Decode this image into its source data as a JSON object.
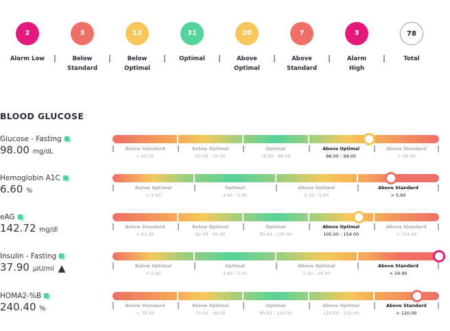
{
  "colors": {
    "alarm": "#e3197e",
    "standard": "#ee6f65",
    "optimal_adj": "#f5c75c",
    "optimal": "#54d39a",
    "copy_icon": "#4fd39a"
  },
  "summary": [
    {
      "count": "2",
      "label": "Alarm Low",
      "color": "#e3197e"
    },
    {
      "count": "3",
      "label": "Below Standard",
      "color": "#ee6f65"
    },
    {
      "count": "12",
      "label": "Below Optimal",
      "color": "#f5c75c"
    },
    {
      "count": "31",
      "label": "Optimal",
      "color": "#54d39a"
    },
    {
      "count": "20",
      "label": "Above Optimal",
      "color": "#f5c75c"
    },
    {
      "count": "7",
      "label": "Above Standard",
      "color": "#ee6f65"
    },
    {
      "count": "3",
      "label": "Alarm High",
      "color": "#e3197e"
    },
    {
      "count": "78",
      "label": "Total",
      "color": "#ffffff"
    }
  ],
  "section_title": "BLOOD GLUCOSE",
  "markers": [
    {
      "name": "Glucose - Fasting",
      "value": "98.00",
      "unit": "mg/dL",
      "warning": false,
      "marker_fraction": 0.786,
      "marker_color": "#f5c04f",
      "active": 3,
      "segments": [
        {
          "label": "Below Standard",
          "range": "< 65.00"
        },
        {
          "label": "Below Optimal",
          "range": "65.00 - 75.00"
        },
        {
          "label": "Optimal",
          "range": "75.00 - 86.00"
        },
        {
          "label": "Above Optimal",
          "range": "86.00 - 99.00"
        },
        {
          "label": "Above Standard",
          "range": "> 99.00"
        }
      ]
    },
    {
      "name": "Hemoglobin A1C",
      "value": "6.60",
      "unit": "%",
      "warning": false,
      "marker_fraction": 0.853,
      "marker_color": "#ee6f65",
      "active": 3,
      "segments": [
        {
          "label": "Below Optimal",
          "range": "< 4.60"
        },
        {
          "label": "Optimal",
          "range": "4.60 - 5.30"
        },
        {
          "label": "Above Optimal",
          "range": "5.30 - 5.60"
        },
        {
          "label": "Above Standard",
          "range": "> 5.60"
        }
      ]
    },
    {
      "name": "eAG",
      "value": "142.72",
      "unit": "mg/dl",
      "warning": false,
      "marker_fraction": 0.754,
      "marker_color": "#f5c04f",
      "active": 3,
      "segments": [
        {
          "label": "Below Standard",
          "range": "< 82.00"
        },
        {
          "label": "Below Optimal",
          "range": "82.00 - 85.00"
        },
        {
          "label": "Optimal",
          "range": "85.00 - 105.00"
        },
        {
          "label": "Above Optimal",
          "range": "105.00 - 154.00"
        },
        {
          "label": "Above Standard",
          "range": "> 154.00"
        }
      ]
    },
    {
      "name": "Insulin - Fasting",
      "value": "37.90",
      "unit": "µIU/ml",
      "warning": true,
      "marker_fraction": 1.0,
      "marker_color": "#e3197e",
      "active": 3,
      "segments": [
        {
          "label": "Below Optimal",
          "range": "< 2.60"
        },
        {
          "label": "Optimal",
          "range": "2.60 - 5.00"
        },
        {
          "label": "Above Optimal",
          "range": "5.00 - 24.90"
        },
        {
          "label": "Above Standard",
          "range": "> 24.90"
        }
      ]
    },
    {
      "name": "HOMA2-%B",
      "value": "240.40",
      "unit": "%",
      "warning": false,
      "marker_fraction": 0.933,
      "marker_color": "#ee6f65",
      "active": 4,
      "segments": [
        {
          "label": "Below Standard",
          "range": "< 70.00"
        },
        {
          "label": "Below Optimal",
          "range": "70.00 - 90.00"
        },
        {
          "label": "Optimal",
          "range": "90.00 - 110.00"
        },
        {
          "label": "Above Optimal",
          "range": "110.00 - 120.00"
        },
        {
          "label": "Above Standard",
          "range": "> 120.00"
        }
      ]
    }
  ]
}
